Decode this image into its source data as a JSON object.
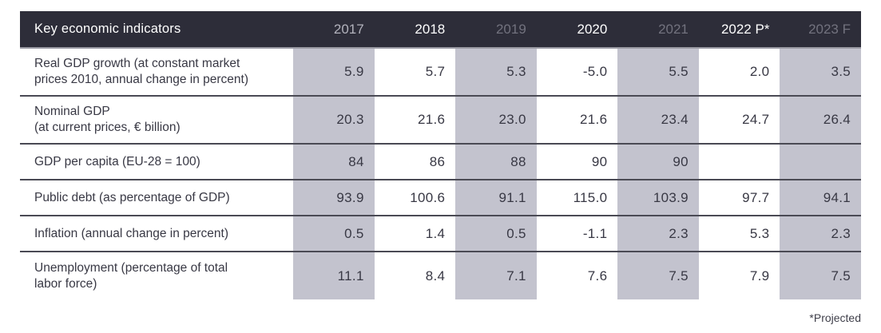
{
  "table": {
    "title": "Key economic indicators",
    "years": [
      {
        "label": "2017",
        "tone": "dim"
      },
      {
        "label": "2018",
        "tone": "bright"
      },
      {
        "label": "2019",
        "tone": "muted"
      },
      {
        "label": "2020",
        "tone": "bright"
      },
      {
        "label": "2021",
        "tone": "muted"
      },
      {
        "label": "2022 P*",
        "tone": "bright"
      },
      {
        "label": "2023 F",
        "tone": "muted"
      }
    ],
    "rows": [
      {
        "label_line1": "Real GDP growth (at constant market",
        "label_line2": "prices 2010, annual change in percent)",
        "values": [
          "5.9",
          "5.7",
          "5.3",
          "-5.0",
          "5.5",
          "2.0",
          "3.5"
        ]
      },
      {
        "label_line1": "Nominal GDP",
        "label_line2": "(at current prices, € billion)",
        "values": [
          "20.3",
          "21.6",
          "23.0",
          "21.6",
          "23.4",
          "24.7",
          "26.4"
        ]
      },
      {
        "label_line1": "GDP per capita (EU-28 = 100)",
        "label_line2": "",
        "values": [
          "84",
          "86",
          "88",
          "90",
          "90",
          "",
          ""
        ]
      },
      {
        "label_line1": "Public debt (as percentage of GDP)",
        "label_line2": "",
        "values": [
          "93.9",
          "100.6",
          "91.1",
          "115.0",
          "103.9",
          "97.7",
          "94.1"
        ]
      },
      {
        "label_line1": "Inflation (annual change in percent)",
        "label_line2": "",
        "values": [
          "0.5",
          "1.4",
          "0.5",
          "-1.1",
          "2.3",
          "5.3",
          "2.3"
        ]
      },
      {
        "label_line1": "Unemployment (percentage of total",
        "label_line2": "labor force)",
        "values": [
          "11.1",
          "8.4",
          "7.1",
          "7.6",
          "7.5",
          "7.9",
          "7.5"
        ]
      }
    ]
  },
  "footnote": "*Projected",
  "colors": {
    "header_bg": "#2d2d39",
    "header_text_bright": "#ffffff",
    "header_text_dim": "#b2b2bc",
    "header_text_muted": "#72727e",
    "shaded_column": "#c3c3ce",
    "body_text": "#383844",
    "row_divider": "#4a4a54",
    "header_divider": "#9b9ba4"
  },
  "chart_data": {
    "type": "table",
    "title": "Key economic indicators",
    "columns": [
      "2017",
      "2018",
      "2019",
      "2020",
      "2021",
      "2022 P*",
      "2023 F"
    ],
    "rows": [
      {
        "indicator": "Real GDP growth (at constant market prices 2010, annual change in percent)",
        "values": [
          5.9,
          5.7,
          5.3,
          -5.0,
          5.5,
          2.0,
          3.5
        ]
      },
      {
        "indicator": "Nominal GDP (at current prices, € billion)",
        "values": [
          20.3,
          21.6,
          23.0,
          21.6,
          23.4,
          24.7,
          26.4
        ]
      },
      {
        "indicator": "GDP per capita (EU-28 = 100)",
        "values": [
          84,
          86,
          88,
          90,
          90,
          null,
          null
        ]
      },
      {
        "indicator": "Public debt (as percentage of GDP)",
        "values": [
          93.9,
          100.6,
          91.1,
          115.0,
          103.9,
          97.7,
          94.1
        ]
      },
      {
        "indicator": "Inflation (annual change in percent)",
        "values": [
          0.5,
          1.4,
          0.5,
          -1.1,
          2.3,
          5.3,
          2.3
        ]
      },
      {
        "indicator": "Unemployment (percentage of total labor force)",
        "values": [
          11.1,
          8.4,
          7.1,
          7.6,
          7.5,
          7.9,
          7.5
        ]
      }
    ],
    "footnote": "*Projected"
  }
}
